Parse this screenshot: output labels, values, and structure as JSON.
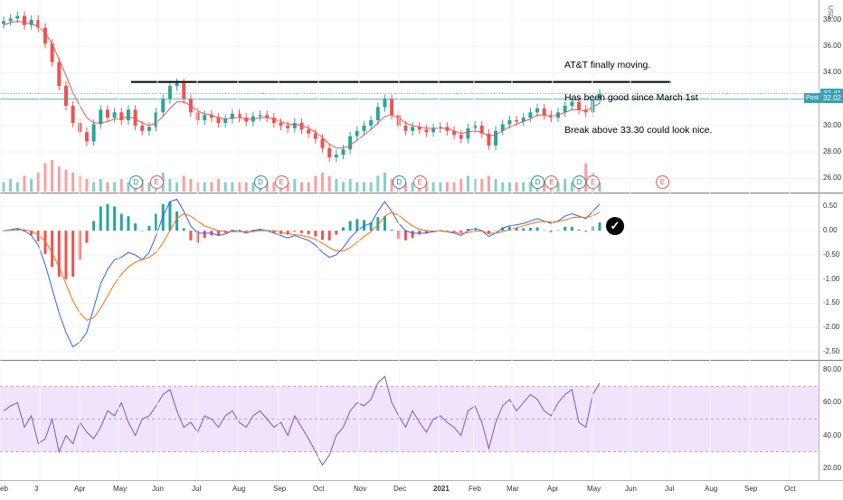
{
  "annotation": {
    "lines": [
      "AT&T finally moving.",
      "Has been good since March 1st",
      "Break above 33.30 could look nice."
    ]
  },
  "colors": {
    "up": "#26a69a",
    "down": "#ef5350",
    "ma": "#ef5350",
    "macd": "#2962ff",
    "signal": "#ff6d00",
    "rsi": "#7e57c2",
    "rsi_band": "#e9d9fb",
    "level": "#000000",
    "price_tag": "#3aa0b5"
  },
  "chart_data": [
    {
      "type": "candlestick",
      "title": "",
      "x_months": [
        "eb",
        "3",
        "Apr",
        "May",
        "Jun",
        "Jul",
        "Aug",
        "Sep",
        "Oct",
        "Nov",
        "Dec",
        "2021",
        "Feb",
        "Mar",
        "Apr",
        "May",
        "Jun",
        "Jul",
        "Aug",
        "Sep",
        "Oct"
      ],
      "y_ticks": [
        38.0,
        36.0,
        34.0,
        32.0,
        30.0,
        28.0,
        26.0
      ],
      "y_tick_labels": [
        "38.00",
        "36.00",
        "34.00",
        "32.00",
        "30.00",
        "28.00",
        "26.00"
      ],
      "currency": "USD",
      "ylim": [
        25.0,
        39.5
      ],
      "resistance_level": 33.3,
      "last_price": "32.41",
      "post_label": "Post",
      "post_price": "32.02",
      "close_series": [
        37.9,
        38.1,
        38.3,
        37.6,
        38.0,
        37.4,
        36.2,
        34.8,
        33.0,
        31.5,
        30.2,
        29.5,
        28.8,
        30.1,
        31.2,
        30.6,
        31.0,
        30.4,
        31.2,
        30.0,
        29.6,
        29.9,
        31.0,
        32.0,
        33.0,
        33.2,
        32.0,
        31.0,
        30.4,
        30.8,
        30.6,
        30.2,
        30.5,
        30.9,
        30.6,
        30.3,
        30.7,
        30.8,
        30.6,
        30.2,
        30.0,
        29.8,
        30.2,
        29.7,
        29.4,
        29.0,
        28.3,
        27.6,
        27.8,
        28.2,
        29.2,
        29.6,
        30.0,
        30.4,
        31.4,
        32.0,
        30.8,
        30.0,
        29.6,
        29.9,
        29.7,
        29.5,
        29.8,
        29.9,
        29.6,
        29.3,
        29.0,
        29.8,
        30.0,
        29.4,
        28.5,
        29.6,
        30.1,
        30.4,
        30.3,
        30.6,
        31.0,
        31.3,
        30.8,
        30.6,
        31.0,
        31.5,
        31.8,
        31.2,
        31.0,
        32.0,
        32.41
      ],
      "ma_series": [
        37.6,
        37.8,
        37.9,
        37.8,
        37.7,
        37.5,
        37.0,
        36.2,
        35.0,
        33.8,
        32.5,
        31.5,
        30.6,
        30.2,
        30.2,
        30.3,
        30.5,
        30.5,
        30.7,
        30.5,
        30.2,
        30.0,
        30.2,
        30.7,
        31.3,
        31.8,
        31.8,
        31.5,
        31.1,
        30.9,
        30.8,
        30.6,
        30.5,
        30.6,
        30.6,
        30.5,
        30.5,
        30.6,
        30.6,
        30.5,
        30.3,
        30.1,
        30.1,
        30.0,
        29.8,
        29.5,
        29.1,
        28.6,
        28.3,
        28.3,
        28.5,
        28.9,
        29.3,
        29.7,
        30.2,
        30.7,
        30.8,
        30.6,
        30.2,
        30.0,
        29.9,
        29.8,
        29.8,
        29.8,
        29.8,
        29.6,
        29.4,
        29.5,
        29.6,
        29.5,
        29.2,
        29.3,
        29.6,
        29.9,
        30.1,
        30.3,
        30.5,
        30.8,
        30.8,
        30.7,
        30.8,
        31.0,
        31.2,
        31.2,
        31.1,
        31.4,
        31.7
      ],
      "volume_series": [
        0.3,
        0.4,
        0.3,
        0.5,
        0.4,
        0.6,
        0.9,
        1.0,
        0.8,
        0.7,
        0.6,
        0.5,
        0.4,
        0.3,
        0.4,
        0.3,
        0.3,
        0.4,
        0.3,
        0.3,
        0.4,
        0.3,
        0.5,
        0.6,
        0.4,
        0.3,
        0.5,
        0.4,
        0.3,
        0.3,
        0.3,
        0.4,
        0.3,
        0.3,
        0.3,
        0.3,
        0.3,
        0.4,
        0.3,
        0.3,
        0.3,
        0.3,
        0.4,
        0.3,
        0.3,
        0.5,
        0.6,
        0.5,
        0.4,
        0.3,
        0.4,
        0.3,
        0.3,
        0.3,
        0.5,
        0.6,
        0.4,
        0.3,
        0.3,
        0.3,
        0.3,
        0.3,
        0.3,
        0.3,
        0.3,
        0.3,
        0.4,
        0.5,
        0.4,
        0.4,
        0.5,
        0.4,
        0.3,
        0.3,
        0.3,
        0.3,
        0.3,
        0.3,
        0.3,
        0.3,
        0.3,
        0.4,
        0.3,
        0.3,
        0.9,
        0.6,
        0.3
      ],
      "events": [
        {
          "kind": "div",
          "label": "D",
          "index": 19
        },
        {
          "kind": "earn",
          "label": "E",
          "index": 22
        },
        {
          "kind": "div",
          "label": "D",
          "index": 37
        },
        {
          "kind": "earn",
          "label": "E",
          "index": 40
        },
        {
          "kind": "div",
          "label": "D",
          "index": 57
        },
        {
          "kind": "earn",
          "label": "E",
          "index": 60
        },
        {
          "kind": "div",
          "label": "D",
          "index": 77
        },
        {
          "kind": "earn",
          "label": "E",
          "index": 79
        },
        {
          "kind": "div",
          "label": "D",
          "index": 83
        },
        {
          "kind": "earn",
          "label": "E",
          "index": 85
        },
        {
          "kind": "earn",
          "label": "E",
          "index": 95
        }
      ]
    },
    {
      "type": "macd",
      "title": "",
      "y_ticks": [
        0.5,
        0.0,
        -0.5,
        -1.0,
        -1.5,
        -2.0,
        -2.5
      ],
      "y_tick_labels": [
        "0.50",
        "0.00",
        "-0.50",
        "-1.00",
        "-1.50",
        "-2.00",
        "-2.50"
      ],
      "ylim": [
        -2.65,
        0.75
      ],
      "macd": [
        0.0,
        0.02,
        0.05,
        0.0,
        -0.1,
        -0.3,
        -0.7,
        -1.2,
        -1.7,
        -2.1,
        -2.4,
        -2.3,
        -2.1,
        -1.6,
        -1.1,
        -0.8,
        -0.6,
        -0.55,
        -0.45,
        -0.5,
        -0.6,
        -0.45,
        -0.1,
        0.3,
        0.6,
        0.65,
        0.4,
        0.1,
        -0.05,
        -0.05,
        -0.05,
        -0.1,
        -0.07,
        0.0,
        0.0,
        -0.05,
        0.0,
        0.03,
        0.0,
        -0.05,
        -0.1,
        -0.15,
        -0.1,
        -0.15,
        -0.2,
        -0.3,
        -0.45,
        -0.55,
        -0.5,
        -0.35,
        -0.15,
        0.0,
        0.1,
        0.15,
        0.4,
        0.6,
        0.4,
        0.15,
        0.0,
        -0.05,
        -0.05,
        -0.05,
        -0.02,
        0.0,
        -0.02,
        -0.05,
        -0.1,
        0.0,
        0.05,
        0.0,
        -0.12,
        -0.05,
        0.05,
        0.1,
        0.12,
        0.15,
        0.2,
        0.25,
        0.2,
        0.15,
        0.2,
        0.3,
        0.35,
        0.3,
        0.25,
        0.4,
        0.55
      ],
      "signal": [
        0.0,
        0.01,
        0.02,
        0.02,
        -0.01,
        -0.08,
        -0.22,
        -0.45,
        -0.75,
        -1.1,
        -1.45,
        -1.7,
        -1.85,
        -1.8,
        -1.6,
        -1.35,
        -1.1,
        -0.9,
        -0.75,
        -0.65,
        -0.6,
        -0.55,
        -0.45,
        -0.25,
        0.0,
        0.25,
        0.35,
        0.3,
        0.2,
        0.1,
        0.05,
        0.0,
        -0.02,
        -0.02,
        -0.02,
        -0.02,
        -0.02,
        0.0,
        0.0,
        0.0,
        -0.03,
        -0.07,
        -0.08,
        -0.1,
        -0.13,
        -0.18,
        -0.26,
        -0.35,
        -0.42,
        -0.42,
        -0.35,
        -0.24,
        -0.12,
        -0.02,
        0.12,
        0.3,
        0.38,
        0.32,
        0.2,
        0.1,
        0.03,
        0.0,
        -0.01,
        -0.01,
        -0.02,
        -0.03,
        -0.06,
        -0.04,
        -0.01,
        -0.01,
        -0.05,
        -0.05,
        -0.02,
        0.02,
        0.06,
        0.1,
        0.14,
        0.18,
        0.19,
        0.18,
        0.19,
        0.22,
        0.27,
        0.28,
        0.27,
        0.31,
        0.38
      ]
    },
    {
      "type": "rsi",
      "title": "",
      "y_ticks": [
        80.0,
        60.0,
        40.0,
        20.0
      ],
      "y_tick_labels": [
        "80.00",
        "60.00",
        "40.00",
        "20.00"
      ],
      "ylim": [
        15,
        85
      ],
      "band": [
        30,
        70
      ],
      "midline": 50,
      "rsi": [
        55,
        58,
        60,
        45,
        52,
        35,
        38,
        50,
        30,
        40,
        35,
        48,
        42,
        38,
        45,
        55,
        52,
        60,
        48,
        40,
        50,
        52,
        58,
        65,
        68,
        55,
        45,
        48,
        42,
        52,
        50,
        45,
        52,
        55,
        48,
        45,
        52,
        55,
        50,
        45,
        48,
        40,
        52,
        45,
        38,
        30,
        22,
        28,
        40,
        45,
        55,
        60,
        58,
        62,
        72,
        76,
        60,
        52,
        45,
        55,
        48,
        42,
        50,
        52,
        48,
        45,
        40,
        55,
        58,
        48,
        32,
        48,
        58,
        62,
        55,
        60,
        65,
        62,
        55,
        52,
        60,
        65,
        68,
        48,
        45,
        65,
        72
      ]
    }
  ],
  "x_axis_labels": [
    "eb",
    "3",
    "Apr",
    "May",
    "Jun",
    "Jul",
    "Aug",
    "Sep",
    "Oct",
    "Nov",
    "Dec",
    "2021",
    "Feb",
    "Mar",
    "Apr",
    "May",
    "Jun",
    "Jul",
    "Aug",
    "Sep",
    "Oct"
  ],
  "currency_label": "USD"
}
